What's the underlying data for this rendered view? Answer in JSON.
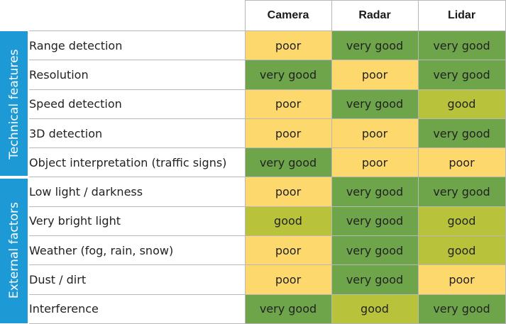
{
  "colors": {
    "group_band": "#1d9ad6",
    "poor": "#fdd86d",
    "good": "#b8c23a",
    "very good": "#6ea54a",
    "border": "#b8b8b8"
  },
  "columns": [
    "Camera",
    "Radar",
    "Lidar"
  ],
  "groups": [
    {
      "label": "Technical features",
      "rows": [
        {
          "feature": "Range detection",
          "values": [
            "poor",
            "very good",
            "very good"
          ]
        },
        {
          "feature": "Resolution",
          "values": [
            "very good",
            "poor",
            "very good"
          ]
        },
        {
          "feature": "Speed detection",
          "values": [
            "poor",
            "very good",
            "good"
          ]
        },
        {
          "feature": "3D detection",
          "values": [
            "poor",
            "poor",
            "very good"
          ]
        },
        {
          "feature": "Object interpretation (traffic signs)",
          "values": [
            "very good",
            "poor",
            "poor"
          ]
        }
      ]
    },
    {
      "label": "External factors",
      "rows": [
        {
          "feature": "Low light / darkness",
          "values": [
            "poor",
            "very good",
            "very good"
          ]
        },
        {
          "feature": "Very bright light",
          "values": [
            "good",
            "very good",
            "good"
          ]
        },
        {
          "feature": "Weather (fog, rain, snow)",
          "values": [
            "poor",
            "very good",
            "good"
          ]
        },
        {
          "feature": "Dust / dirt",
          "values": [
            "poor",
            "very good",
            "poor"
          ]
        },
        {
          "feature": "Interference",
          "values": [
            "very good",
            "good",
            "very good"
          ]
        }
      ]
    }
  ]
}
